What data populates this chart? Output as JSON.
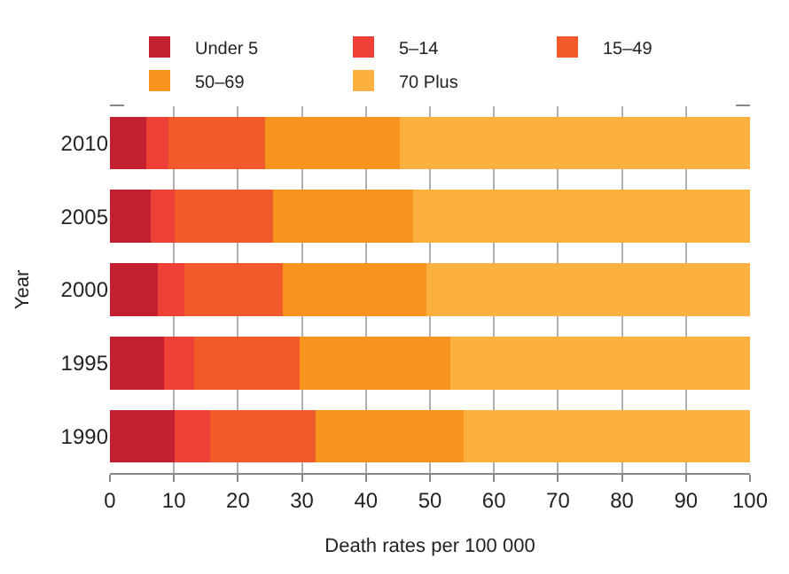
{
  "chart_data": {
    "type": "bar",
    "orientation": "horizontal",
    "stacked": true,
    "categories": [
      "2010",
      "2005",
      "2000",
      "1995",
      "1990"
    ],
    "series": [
      {
        "name": "Under 5",
        "color": "#c0202f",
        "values": [
          5.7,
          6.4,
          7.5,
          8.5,
          10.1
        ]
      },
      {
        "name": "5–14",
        "color": "#ee4036",
        "values": [
          3.4,
          3.7,
          4.1,
          4.7,
          5.5
        ]
      },
      {
        "name": "15–49",
        "color": "#f15a2b",
        "values": [
          15.1,
          15.4,
          15.4,
          16.5,
          16.6
        ]
      },
      {
        "name": "50–69",
        "color": "#f7941d",
        "values": [
          21.1,
          21.8,
          22.4,
          23.5,
          23.1
        ]
      },
      {
        "name": "70 Plus",
        "color": "#fbb040",
        "values": [
          54.7,
          52.7,
          50.6,
          46.8,
          44.7
        ]
      }
    ],
    "xlim": [
      0,
      100
    ],
    "xticks": [
      0,
      10,
      20,
      30,
      40,
      50,
      60,
      70,
      80,
      90,
      100
    ],
    "xlabel": "Death rates per 100 000",
    "ylabel": "Year",
    "grid": "x",
    "legend": "top"
  }
}
